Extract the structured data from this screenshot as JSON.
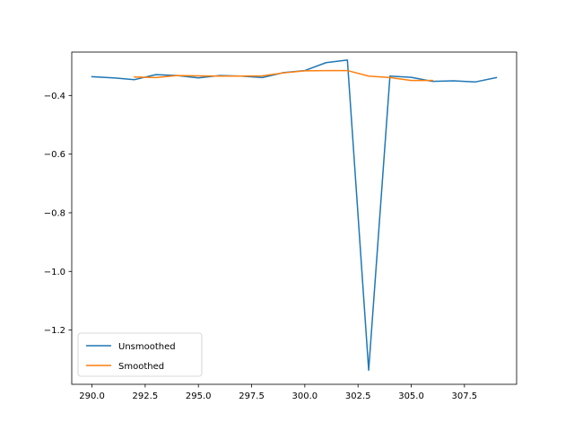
{
  "chart_data": {
    "type": "line",
    "title": "",
    "xlabel": "",
    "ylabel": "",
    "xlim": [
      289.05,
      309.95
    ],
    "ylim": [
      -1.385,
      -0.252
    ],
    "x_ticks": [
      290.0,
      292.5,
      295.0,
      297.5,
      300.0,
      302.5,
      305.0,
      307.5
    ],
    "x_tick_labels": [
      "290.0",
      "292.5",
      "295.0",
      "297.5",
      "300.0",
      "302.5",
      "305.0",
      "307.5"
    ],
    "y_ticks": [
      -0.4,
      -0.6,
      -0.8,
      -1.0,
      -1.2
    ],
    "y_tick_labels": [
      "−0.4",
      "−0.6",
      "−0.8",
      "−1.0",
      "−1.2"
    ],
    "grid": false,
    "legend_position": "lower-left",
    "series": [
      {
        "name": "Unsmoothed",
        "color": "#1f77b4",
        "x": [
          290,
          291,
          292,
          293,
          294,
          295,
          296,
          297,
          298,
          299,
          300,
          301,
          302,
          303,
          304,
          305,
          306,
          307,
          308,
          309
        ],
        "y": [
          -0.336,
          -0.34,
          -0.346,
          -0.329,
          -0.332,
          -0.34,
          -0.332,
          -0.334,
          -0.339,
          -0.322,
          -0.315,
          -0.288,
          -0.279,
          -1.337,
          -0.334,
          -0.338,
          -0.352,
          -0.35,
          -0.354,
          -0.339
        ]
      },
      {
        "name": "Smoothed",
        "color": "#ff7f0e",
        "x": [
          292,
          293,
          294,
          295,
          296,
          297,
          298,
          299,
          300,
          301,
          302,
          303,
          304,
          305,
          306
        ],
        "y": [
          -0.337,
          -0.339,
          -0.332,
          -0.333,
          -0.334,
          -0.334,
          -0.333,
          -0.323,
          -0.316,
          -0.315,
          -0.315,
          -0.334,
          -0.339,
          -0.349,
          -0.349
        ]
      }
    ]
  }
}
